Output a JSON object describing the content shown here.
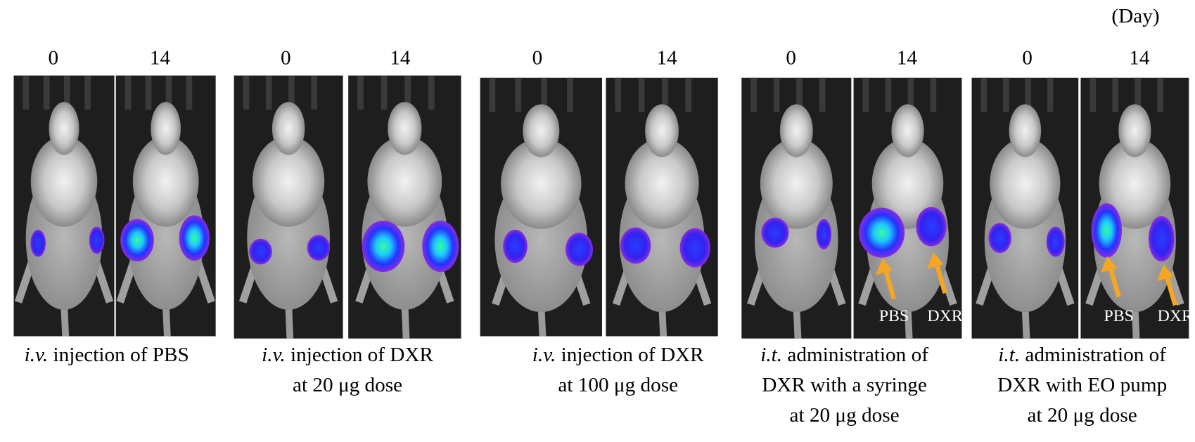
{
  "day_unit": "(Day)",
  "groups": [
    {
      "days": [
        "0",
        "14"
      ],
      "caption": [
        {
          "italic": "i.v.",
          "text": " injection of PBS"
        }
      ]
    },
    {
      "days": [
        "0",
        "14"
      ],
      "caption": [
        {
          "italic": "i.v.",
          "text": " injection of DXR"
        },
        {
          "text": "at 20 μg dose"
        }
      ]
    },
    {
      "days": [
        "0",
        "14"
      ],
      "caption": [
        {
          "italic": "i.v.",
          "text": " injection of DXR"
        },
        {
          "text": "at 100 μg dose"
        }
      ]
    },
    {
      "days": [
        "0",
        "14"
      ],
      "caption": [
        {
          "italic": "i.t.",
          "text": " administration of"
        },
        {
          "text": "DXR with a syringe"
        },
        {
          "text": "at 20 μg dose"
        }
      ],
      "markers": [
        "PBS",
        "DXR"
      ]
    },
    {
      "days": [
        "0",
        "14"
      ],
      "caption": [
        {
          "italic": "i.t.",
          "text": " administration of"
        },
        {
          "text": "DXR with EO pump"
        },
        {
          "text": "at 20 μg dose"
        }
      ],
      "markers": [
        "PBS",
        "DXR"
      ]
    }
  ]
}
